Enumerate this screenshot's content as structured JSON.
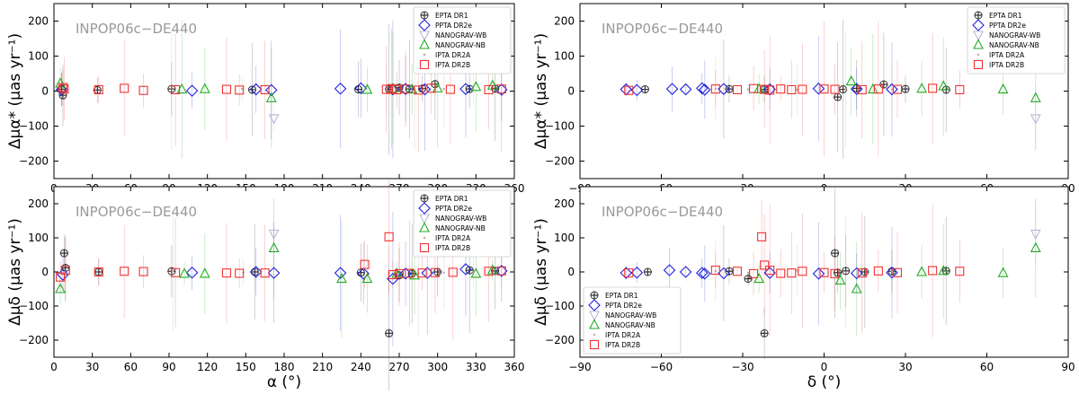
{
  "figure": {
    "watermark": "INPOP06c−DE440"
  },
  "legend_labels": [
    "EPTA DR1",
    "PPTA DR2e",
    "NANOGRAV-WB",
    "NANOGRAV-NB",
    "IPTA DR2A",
    "IPTA DR2B"
  ],
  "colors": {
    "EPTA DR1": "#333333",
    "PPTA DR2e": "#2222dd",
    "NANOGRAV-WB": "#b8b8d8",
    "NANOGRAV-NB": "#22aa22",
    "IPTA DR2A": "#c8a0a0",
    "IPTA DR2B": "#ee3333"
  },
  "chart_data": [
    {
      "id": "ra-pmra",
      "type": "scatter",
      "xlabel": "α (°)",
      "ylabel": "Δμα* (μas yr⁻¹)",
      "xlim": [
        0,
        360
      ],
      "ylim": [
        -250,
        250
      ],
      "xticks": [
        "0",
        "30",
        "60",
        "90",
        "120",
        "150",
        "180",
        "210",
        "240",
        "270",
        "300",
        "330",
        "360"
      ],
      "yticks": [
        "200",
        "100",
        "0",
        "−100",
        "−200"
      ],
      "show_xlabel": false,
      "legend_position": "top-right",
      "series": [
        {
          "name": "EPTA DR1",
          "x": [
            6,
            7,
            34,
            92,
            155,
            238,
            262,
            270,
            278,
            288,
            298,
            325,
            345
          ],
          "y": [
            5,
            -12,
            3,
            6,
            4,
            5,
            5,
            10,
            6,
            7,
            20,
            6,
            7
          ]
        },
        {
          "name": "PPTA DR2e",
          "x": [
            6,
            108,
            158,
            170,
            224,
            240,
            265,
            275,
            290,
            322,
            350
          ],
          "y": [
            4,
            1,
            5,
            3,
            7,
            8,
            5,
            6,
            5,
            6,
            4
          ]
        },
        {
          "name": "NANOGRAV-WB",
          "x": [
            172
          ],
          "y": [
            -78
          ]
        },
        {
          "name": "NANOGRAV-NB",
          "x": [
            5,
            100,
            118,
            170,
            245,
            265,
            280,
            300,
            330,
            343
          ],
          "y": [
            22,
            5,
            6,
            -20,
            4,
            7,
            5,
            8,
            12,
            16
          ]
        },
        {
          "name": "IPTA DR2A",
          "x": [
            7,
            92,
            147,
            260,
            282,
            305,
            328
          ],
          "y": [
            8,
            4,
            6,
            3,
            5,
            6,
            5
          ]
        },
        {
          "name": "IPTA DR2B",
          "x": [
            7,
            8,
            35,
            55,
            70,
            95,
            135,
            145,
            165,
            260,
            264,
            268,
            275,
            285,
            295,
            310,
            340,
            350
          ],
          "y": [
            10,
            6,
            4,
            8,
            2,
            4,
            5,
            3,
            4,
            5,
            7,
            4,
            6,
            3,
            8,
            5,
            4,
            6
          ]
        }
      ]
    },
    {
      "id": "dec-pmra",
      "type": "scatter",
      "xlabel": "δ (°)",
      "ylabel": "Δμα* (μas yr⁻¹)",
      "xlim": [
        -90,
        90
      ],
      "ylim": [
        -250,
        250
      ],
      "xticks": [
        "−90",
        "−60",
        "−30",
        "0",
        "30",
        "60",
        "90"
      ],
      "yticks": [
        "200",
        "100",
        "0",
        "−100",
        "−200"
      ],
      "show_xlabel": false,
      "legend_position": "top-right",
      "series": [
        {
          "name": "EPTA DR1",
          "x": [
            -66,
            -35,
            -22,
            5,
            7,
            12,
            22,
            30,
            45
          ],
          "y": [
            5,
            6,
            5,
            -17,
            5,
            8,
            19,
            6,
            4
          ]
        },
        {
          "name": "PPTA DR2e",
          "x": [
            -73,
            -69,
            -56,
            -51,
            -45,
            -44,
            -37,
            -20,
            -2,
            12,
            25
          ],
          "y": [
            5,
            3,
            6,
            5,
            8,
            4,
            6,
            5,
            7,
            6,
            5
          ]
        },
        {
          "name": "NANOGRAV-WB",
          "x": [
            78
          ],
          "y": [
            -78
          ]
        },
        {
          "name": "NANOGRAV-NB",
          "x": [
            -24,
            10,
            18,
            36,
            44,
            66,
            78
          ],
          "y": [
            6,
            28,
            5,
            7,
            14,
            5,
            -20
          ]
        },
        {
          "name": "IPTA DR2A",
          "x": [
            -40,
            -28,
            -10,
            8,
            25
          ],
          "y": [
            7,
            5,
            4,
            6,
            5
          ]
        },
        {
          "name": "IPTA DR2B",
          "x": [
            -72,
            -40,
            -32,
            -26,
            -22,
            -20,
            -16,
            -12,
            -8,
            0,
            4,
            14,
            20,
            27,
            40,
            50
          ],
          "y": [
            2,
            6,
            4,
            7,
            5,
            3,
            6,
            4,
            5,
            6,
            5,
            4,
            6,
            5,
            8,
            4
          ]
        }
      ]
    },
    {
      "id": "ra-pmdec",
      "type": "scatter",
      "xlabel": "α (°)",
      "ylabel": "Δμδ (μas yr⁻¹)",
      "xlim": [
        0,
        360
      ],
      "ylim": [
        -250,
        250
      ],
      "xticks": [
        "0",
        "30",
        "60",
        "90",
        "120",
        "150",
        "180",
        "210",
        "240",
        "270",
        "300",
        "330",
        "360"
      ],
      "yticks": [
        "200",
        "100",
        "0",
        "−100",
        "−200"
      ],
      "show_xlabel": true,
      "legend_position": "top-right",
      "series": [
        {
          "name": "EPTA DR1",
          "x": [
            8,
            9,
            35,
            92,
            157,
            240,
            262,
            270,
            280,
            300,
            325,
            345
          ],
          "y": [
            55,
            12,
            0,
            2,
            0,
            -2,
            -180,
            -10,
            -5,
            0,
            5,
            3
          ]
        },
        {
          "name": "PPTA DR2e",
          "x": [
            7,
            108,
            158,
            172,
            224,
            242,
            265,
            275,
            292,
            322,
            350
          ],
          "y": [
            -8,
            -2,
            0,
            -3,
            -3,
            -5,
            -20,
            -5,
            -3,
            8,
            3
          ]
        },
        {
          "name": "NANOGRAV-WB",
          "x": [
            172
          ],
          "y": [
            112
          ]
        },
        {
          "name": "NANOGRAV-NB",
          "x": [
            5,
            102,
            118,
            172,
            225,
            245,
            268,
            282,
            330,
            343
          ],
          "y": [
            -50,
            -5,
            -5,
            70,
            -20,
            -20,
            -5,
            -10,
            -5,
            5
          ]
        },
        {
          "name": "IPTA DR2A",
          "x": [
            8,
            93,
            148,
            262,
            285,
            305,
            328
          ],
          "y": [
            0,
            2,
            -2,
            -3,
            -4,
            -2,
            0
          ]
        },
        {
          "name": "IPTA DR2B",
          "x": [
            5,
            9,
            35,
            55,
            70,
            95,
            135,
            145,
            165,
            243,
            262,
            265,
            270,
            278,
            288,
            298,
            312,
            340,
            350
          ],
          "y": [
            -15,
            5,
            0,
            2,
            1,
            -2,
            -3,
            -4,
            -3,
            22,
            103,
            -8,
            -5,
            -4,
            -3,
            -2,
            -1,
            2,
            3
          ]
        }
      ]
    },
    {
      "id": "dec-pmdec",
      "type": "scatter",
      "xlabel": "δ (°)",
      "ylabel": "Δμδ (μas yr⁻¹)",
      "xlim": [
        -90,
        90
      ],
      "ylim": [
        -250,
        250
      ],
      "xticks": [
        "−90",
        "−60",
        "−30",
        "0",
        "30",
        "60",
        "90"
      ],
      "yticks": [
        "200",
        "100",
        "0",
        "−100",
        "−200"
      ],
      "show_xlabel": true,
      "legend_position": "bottom-left",
      "series": [
        {
          "name": "EPTA DR1",
          "x": [
            -65,
            -35,
            -28,
            -22,
            4,
            5,
            8,
            15,
            25,
            45
          ],
          "y": [
            0,
            2,
            -20,
            -180,
            55,
            -2,
            3,
            0,
            2,
            3
          ]
        },
        {
          "name": "PPTA DR2e",
          "x": [
            -73,
            -69,
            -57,
            -51,
            -45,
            -44,
            -37,
            -20,
            -2,
            12,
            25
          ],
          "y": [
            -3,
            -2,
            5,
            0,
            -3,
            -5,
            -4,
            -3,
            -5,
            -4,
            -2
          ]
        },
        {
          "name": "NANOGRAV-WB",
          "x": [
            78
          ],
          "y": [
            112
          ]
        },
        {
          "name": "NANOGRAV-NB",
          "x": [
            -24,
            6,
            12,
            36,
            44,
            66,
            78
          ],
          "y": [
            -20,
            -25,
            -50,
            0,
            3,
            -3,
            70
          ]
        },
        {
          "name": "IPTA DR2A",
          "x": [
            -40,
            -28,
            -10,
            8,
            25
          ],
          "y": [
            2,
            -3,
            4,
            -2,
            1
          ]
        },
        {
          "name": "IPTA DR2B",
          "x": [
            -72,
            -40,
            -32,
            -26,
            -23,
            -22,
            -20,
            -16,
            -12,
            -8,
            0,
            4,
            14,
            20,
            27,
            40,
            50
          ],
          "y": [
            -3,
            5,
            2,
            -5,
            103,
            20,
            5,
            -4,
            -3,
            2,
            -2,
            -5,
            -3,
            3,
            -2,
            4,
            2
          ]
        }
      ]
    }
  ]
}
